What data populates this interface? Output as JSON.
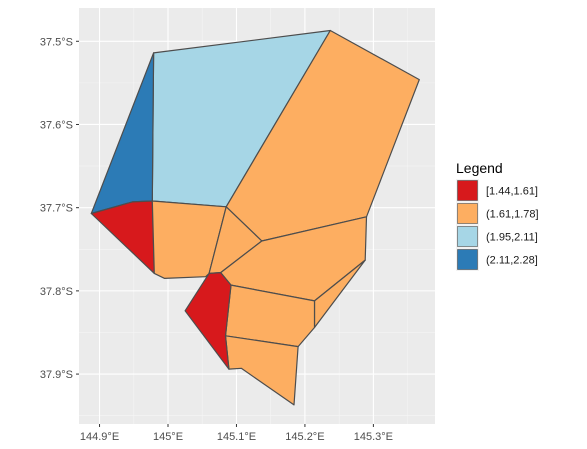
{
  "chart_data": {
    "type": "choropleth",
    "x_axis": {
      "ticks": [
        {
          "value": 144.9,
          "label": "144.9°E"
        },
        {
          "value": 145.0,
          "label": "145°E"
        },
        {
          "value": 145.1,
          "label": "145.1°E"
        },
        {
          "value": 145.2,
          "label": "145.2°E"
        },
        {
          "value": 145.3,
          "label": "145.3°E"
        }
      ],
      "xlim": [
        144.87,
        145.39
      ]
    },
    "y_axis": {
      "ticks": [
        {
          "value": -37.5,
          "label": "37.5°S"
        },
        {
          "value": -37.6,
          "label": "37.6°S"
        },
        {
          "value": -37.7,
          "label": "37.7°S"
        },
        {
          "value": -37.8,
          "label": "37.8°S"
        },
        {
          "value": -37.9,
          "label": "37.9°S"
        }
      ],
      "ylim": [
        -37.96,
        -37.46
      ]
    },
    "grid": true,
    "legend": {
      "title": "Legend",
      "position": "right",
      "classes": [
        {
          "label": "[1.44,1.61]",
          "color": "#d7191c"
        },
        {
          "label": "(1.61,1.78]",
          "color": "#fdae61"
        },
        {
          "label": "(1.95,2.11]",
          "color": "#a6d6e6"
        },
        {
          "label": "(2.11,2.28]",
          "color": "#2c7bb6"
        }
      ]
    },
    "regions": [
      {
        "class": 2,
        "points": [
          [
            144.979,
            -37.514
          ],
          [
            145.237,
            -37.487
          ],
          [
            145.085,
            -37.699
          ],
          [
            144.977,
            -37.692
          ]
        ]
      },
      {
        "class": 3,
        "points": [
          [
            144.979,
            -37.514
          ],
          [
            144.977,
            -37.692
          ],
          [
            144.948,
            -37.693
          ],
          [
            144.927,
            -37.698
          ],
          [
            144.888,
            -37.707
          ]
        ]
      },
      {
        "class": 0,
        "points": [
          [
            144.888,
            -37.707
          ],
          [
            144.927,
            -37.698
          ],
          [
            144.948,
            -37.693
          ],
          [
            144.977,
            -37.692
          ],
          [
            144.98,
            -37.779
          ]
        ]
      },
      {
        "class": 1,
        "points": [
          [
            144.977,
            -37.692
          ],
          [
            145.085,
            -37.699
          ],
          [
            145.06,
            -37.779
          ],
          [
            145.055,
            -37.783
          ],
          [
            144.995,
            -37.785
          ],
          [
            144.98,
            -37.779
          ]
        ]
      },
      {
        "class": 1,
        "points": [
          [
            145.085,
            -37.699
          ],
          [
            145.237,
            -37.487
          ],
          [
            145.367,
            -37.546
          ],
          [
            145.29,
            -37.711
          ],
          [
            145.137,
            -37.74
          ]
        ]
      },
      {
        "class": 1,
        "points": [
          [
            145.085,
            -37.699
          ],
          [
            145.137,
            -37.74
          ],
          [
            145.077,
            -37.778
          ],
          [
            145.06,
            -37.779
          ]
        ]
      },
      {
        "class": 1,
        "points": [
          [
            145.137,
            -37.74
          ],
          [
            145.29,
            -37.711
          ],
          [
            145.288,
            -37.763
          ],
          [
            145.214,
            -37.812
          ],
          [
            145.092,
            -37.793
          ],
          [
            145.077,
            -37.778
          ]
        ]
      },
      {
        "class": 1,
        "points": [
          [
            145.288,
            -37.763
          ],
          [
            145.214,
            -37.844
          ],
          [
            145.214,
            -37.812
          ]
        ]
      },
      {
        "class": 1,
        "points": [
          [
            145.092,
            -37.793
          ],
          [
            145.214,
            -37.812
          ],
          [
            145.214,
            -37.844
          ],
          [
            145.19,
            -37.867
          ],
          [
            145.084,
            -37.854
          ]
        ]
      },
      {
        "class": 1,
        "points": [
          [
            145.084,
            -37.854
          ],
          [
            145.19,
            -37.867
          ],
          [
            145.184,
            -37.937
          ],
          [
            145.107,
            -37.893
          ],
          [
            145.089,
            -37.894
          ]
        ]
      },
      {
        "class": 0,
        "points": [
          [
            145.06,
            -37.779
          ],
          [
            145.077,
            -37.778
          ],
          [
            145.092,
            -37.793
          ],
          [
            145.084,
            -37.854
          ],
          [
            145.089,
            -37.894
          ],
          [
            145.025,
            -37.824
          ]
        ]
      }
    ]
  }
}
